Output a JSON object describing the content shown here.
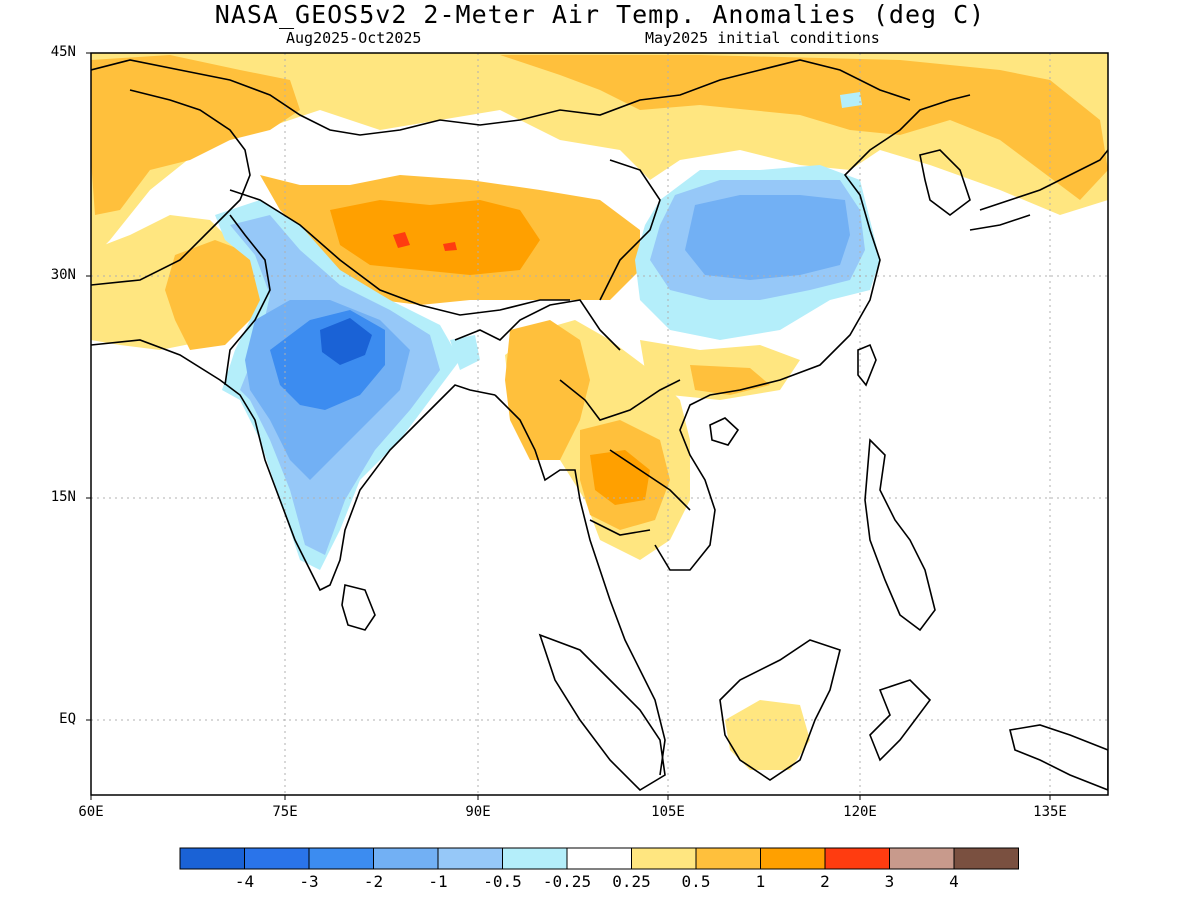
{
  "header": {
    "title": "NASA_GEOS5v2 2-Meter Air Temp. Anomalies (deg C)",
    "period": "Aug2025-Oct2025",
    "init": "May2025 initial conditions"
  },
  "map": {
    "lon_range": [
      60,
      140
    ],
    "lat_range": [
      -6,
      45
    ],
    "y_ticks": [
      "45N",
      "30N",
      "15N",
      "EQ"
    ],
    "x_ticks": [
      "60E",
      "75E",
      "90E",
      "105E",
      "120E",
      "135E"
    ],
    "gridlines": "dotted"
  },
  "colorbar": {
    "colors": [
      "#1a62d6",
      "#2a74ea",
      "#3c8cf0",
      "#72b0f4",
      "#96c8f8",
      "#b4eefa",
      "#ffffff",
      "#ffe680",
      "#ffc03c",
      "#ffa000",
      "#ff3c10",
      "#c89a8c",
      "#7a5040"
    ],
    "labels": [
      "-4",
      "-3",
      "-2",
      "-1",
      "-0.5",
      "-0.25",
      "0.25",
      "0.5",
      "1",
      "2",
      "3",
      "4"
    ]
  }
}
